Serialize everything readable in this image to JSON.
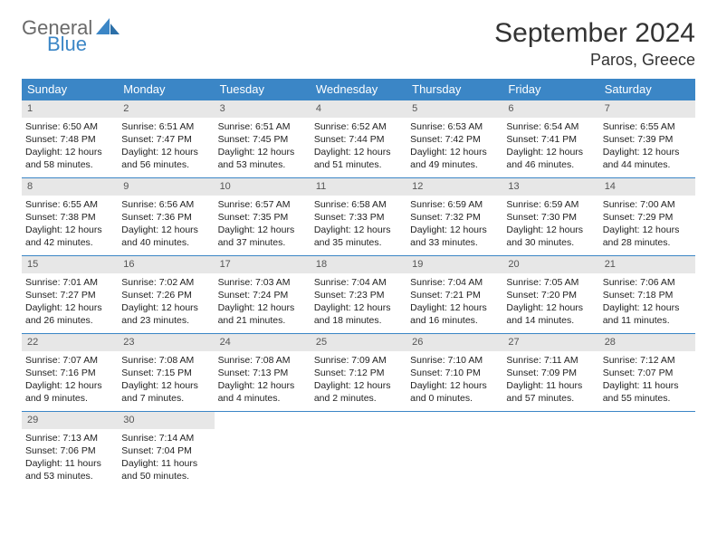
{
  "brand": {
    "line1": "General",
    "line2": "Blue",
    "line1_color": "#6a6a6a",
    "line2_color": "#3b86c6"
  },
  "title": "September 2024",
  "location": "Paros, Greece",
  "colors": {
    "header_bg": "#3b86c6",
    "header_text": "#ffffff",
    "daynum_bg": "#e7e7e7",
    "daynum_text": "#555555",
    "cell_border": "#3b86c6",
    "body_text": "#222222",
    "page_bg": "#ffffff"
  },
  "typography": {
    "title_fontsize": 30,
    "subtitle_fontsize": 18,
    "header_fontsize": 13,
    "daynum_fontsize": 11,
    "body_fontsize": 10.5
  },
  "weekdays": [
    "Sunday",
    "Monday",
    "Tuesday",
    "Wednesday",
    "Thursday",
    "Friday",
    "Saturday"
  ],
  "weeks": [
    [
      {
        "n": "1",
        "sr": "6:50 AM",
        "ss": "7:48 PM",
        "dl": "12 hours and 58 minutes."
      },
      {
        "n": "2",
        "sr": "6:51 AM",
        "ss": "7:47 PM",
        "dl": "12 hours and 56 minutes."
      },
      {
        "n": "3",
        "sr": "6:51 AM",
        "ss": "7:45 PM",
        "dl": "12 hours and 53 minutes."
      },
      {
        "n": "4",
        "sr": "6:52 AM",
        "ss": "7:44 PM",
        "dl": "12 hours and 51 minutes."
      },
      {
        "n": "5",
        "sr": "6:53 AM",
        "ss": "7:42 PM",
        "dl": "12 hours and 49 minutes."
      },
      {
        "n": "6",
        "sr": "6:54 AM",
        "ss": "7:41 PM",
        "dl": "12 hours and 46 minutes."
      },
      {
        "n": "7",
        "sr": "6:55 AM",
        "ss": "7:39 PM",
        "dl": "12 hours and 44 minutes."
      }
    ],
    [
      {
        "n": "8",
        "sr": "6:55 AM",
        "ss": "7:38 PM",
        "dl": "12 hours and 42 minutes."
      },
      {
        "n": "9",
        "sr": "6:56 AM",
        "ss": "7:36 PM",
        "dl": "12 hours and 40 minutes."
      },
      {
        "n": "10",
        "sr": "6:57 AM",
        "ss": "7:35 PM",
        "dl": "12 hours and 37 minutes."
      },
      {
        "n": "11",
        "sr": "6:58 AM",
        "ss": "7:33 PM",
        "dl": "12 hours and 35 minutes."
      },
      {
        "n": "12",
        "sr": "6:59 AM",
        "ss": "7:32 PM",
        "dl": "12 hours and 33 minutes."
      },
      {
        "n": "13",
        "sr": "6:59 AM",
        "ss": "7:30 PM",
        "dl": "12 hours and 30 minutes."
      },
      {
        "n": "14",
        "sr": "7:00 AM",
        "ss": "7:29 PM",
        "dl": "12 hours and 28 minutes."
      }
    ],
    [
      {
        "n": "15",
        "sr": "7:01 AM",
        "ss": "7:27 PM",
        "dl": "12 hours and 26 minutes."
      },
      {
        "n": "16",
        "sr": "7:02 AM",
        "ss": "7:26 PM",
        "dl": "12 hours and 23 minutes."
      },
      {
        "n": "17",
        "sr": "7:03 AM",
        "ss": "7:24 PM",
        "dl": "12 hours and 21 minutes."
      },
      {
        "n": "18",
        "sr": "7:04 AM",
        "ss": "7:23 PM",
        "dl": "12 hours and 18 minutes."
      },
      {
        "n": "19",
        "sr": "7:04 AM",
        "ss": "7:21 PM",
        "dl": "12 hours and 16 minutes."
      },
      {
        "n": "20",
        "sr": "7:05 AM",
        "ss": "7:20 PM",
        "dl": "12 hours and 14 minutes."
      },
      {
        "n": "21",
        "sr": "7:06 AM",
        "ss": "7:18 PM",
        "dl": "12 hours and 11 minutes."
      }
    ],
    [
      {
        "n": "22",
        "sr": "7:07 AM",
        "ss": "7:16 PM",
        "dl": "12 hours and 9 minutes."
      },
      {
        "n": "23",
        "sr": "7:08 AM",
        "ss": "7:15 PM",
        "dl": "12 hours and 7 minutes."
      },
      {
        "n": "24",
        "sr": "7:08 AM",
        "ss": "7:13 PM",
        "dl": "12 hours and 4 minutes."
      },
      {
        "n": "25",
        "sr": "7:09 AM",
        "ss": "7:12 PM",
        "dl": "12 hours and 2 minutes."
      },
      {
        "n": "26",
        "sr": "7:10 AM",
        "ss": "7:10 PM",
        "dl": "12 hours and 0 minutes."
      },
      {
        "n": "27",
        "sr": "7:11 AM",
        "ss": "7:09 PM",
        "dl": "11 hours and 57 minutes."
      },
      {
        "n": "28",
        "sr": "7:12 AM",
        "ss": "7:07 PM",
        "dl": "11 hours and 55 minutes."
      }
    ],
    [
      {
        "n": "29",
        "sr": "7:13 AM",
        "ss": "7:06 PM",
        "dl": "11 hours and 53 minutes."
      },
      {
        "n": "30",
        "sr": "7:14 AM",
        "ss": "7:04 PM",
        "dl": "11 hours and 50 minutes."
      },
      null,
      null,
      null,
      null,
      null
    ]
  ],
  "labels": {
    "sunrise": "Sunrise: ",
    "sunset": "Sunset: ",
    "daylight": "Daylight: "
  }
}
